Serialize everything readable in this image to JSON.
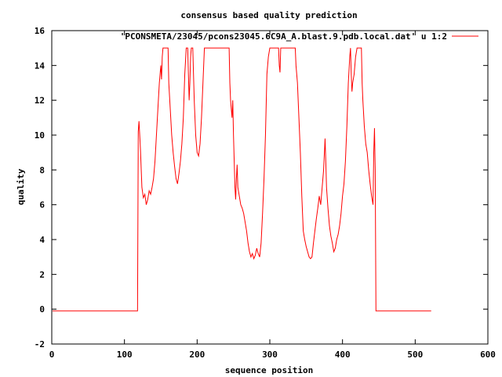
{
  "chart_data": {
    "type": "line",
    "title": "consensus based quality prediction",
    "xlabel": "sequence position",
    "ylabel": "quality",
    "xlim": [
      0,
      600
    ],
    "ylim": [
      -2,
      16
    ],
    "x_ticks": [
      0,
      100,
      200,
      300,
      400,
      500,
      600
    ],
    "y_ticks": [
      -2,
      0,
      2,
      4,
      6,
      8,
      10,
      12,
      14,
      16
    ],
    "grid": false,
    "legend_position": "top-right",
    "series": [
      {
        "name": "'PCONSMETA/23045/pcons23045.6C9A_A.blast.9.pdb.local.dat' u 1:2",
        "color": "#ff0000",
        "points": [
          [
            1,
            -0.1
          ],
          [
            118,
            -0.1
          ],
          [
            119,
            10.2
          ],
          [
            120,
            10.8
          ],
          [
            121,
            10.0
          ],
          [
            122,
            9.2
          ],
          [
            124,
            7.0
          ],
          [
            126,
            6.4
          ],
          [
            128,
            6.6
          ],
          [
            130,
            6.0
          ],
          [
            132,
            6.3
          ],
          [
            134,
            6.8
          ],
          [
            136,
            6.6
          ],
          [
            138,
            7.0
          ],
          [
            140,
            7.5
          ],
          [
            142,
            8.5
          ],
          [
            144,
            10.0
          ],
          [
            146,
            11.5
          ],
          [
            148,
            13.0
          ],
          [
            150,
            14.0
          ],
          [
            151,
            13.2
          ],
          [
            152,
            14.5
          ],
          [
            153,
            15.0
          ],
          [
            160,
            15.0
          ],
          [
            161,
            13.0
          ],
          [
            163,
            11.5
          ],
          [
            165,
            10.0
          ],
          [
            167,
            9.0
          ],
          [
            169,
            8.2
          ],
          [
            171,
            7.5
          ],
          [
            173,
            7.2
          ],
          [
            175,
            7.8
          ],
          [
            177,
            8.5
          ],
          [
            179,
            9.5
          ],
          [
            181,
            11.0
          ],
          [
            183,
            13.5
          ],
          [
            185,
            15.0
          ],
          [
            187,
            15.0
          ],
          [
            188,
            13.5
          ],
          [
            189,
            12.0
          ],
          [
            190,
            13.0
          ],
          [
            191,
            14.5
          ],
          [
            192,
            15.0
          ],
          [
            194,
            15.0
          ],
          [
            196,
            12.0
          ],
          [
            198,
            10.0
          ],
          [
            200,
            9.0
          ],
          [
            202,
            8.8
          ],
          [
            204,
            9.5
          ],
          [
            206,
            11.0
          ],
          [
            208,
            13.0
          ],
          [
            210,
            15.0
          ],
          [
            244,
            15.0
          ],
          [
            245,
            13.0
          ],
          [
            246,
            12.0
          ],
          [
            248,
            11.0
          ],
          [
            249,
            12.0
          ],
          [
            250,
            10.0
          ],
          [
            251,
            8.5
          ],
          [
            252,
            7.0
          ],
          [
            253,
            6.3
          ],
          [
            254,
            7.5
          ],
          [
            255,
            8.3
          ],
          [
            256,
            7.0
          ],
          [
            258,
            6.5
          ],
          [
            260,
            6.0
          ],
          [
            262,
            5.8
          ],
          [
            264,
            5.5
          ],
          [
            266,
            5.0
          ],
          [
            268,
            4.5
          ],
          [
            270,
            3.8
          ],
          [
            272,
            3.3
          ],
          [
            274,
            3.0
          ],
          [
            276,
            3.2
          ],
          [
            278,
            2.9
          ],
          [
            280,
            3.1
          ],
          [
            282,
            3.5
          ],
          [
            284,
            3.2
          ],
          [
            286,
            3.0
          ],
          [
            288,
            3.8
          ],
          [
            290,
            5.5
          ],
          [
            292,
            7.5
          ],
          [
            294,
            10.0
          ],
          [
            296,
            13.5
          ],
          [
            298,
            14.5
          ],
          [
            300,
            15.0
          ],
          [
            312,
            15.0
          ],
          [
            313,
            14.0
          ],
          [
            314,
            13.6
          ],
          [
            315,
            15.0
          ],
          [
            335,
            15.0
          ],
          [
            336,
            14.0
          ],
          [
            338,
            13.0
          ],
          [
            340,
            11.0
          ],
          [
            342,
            9.0
          ],
          [
            344,
            6.5
          ],
          [
            346,
            4.5
          ],
          [
            348,
            4.0
          ],
          [
            350,
            3.6
          ],
          [
            352,
            3.3
          ],
          [
            354,
            3.0
          ],
          [
            356,
            2.9
          ],
          [
            358,
            3.0
          ],
          [
            360,
            3.8
          ],
          [
            362,
            4.5
          ],
          [
            364,
            5.2
          ],
          [
            366,
            5.8
          ],
          [
            368,
            6.5
          ],
          [
            370,
            6.0
          ],
          [
            372,
            7.0
          ],
          [
            374,
            8.0
          ],
          [
            376,
            9.8
          ],
          [
            377,
            8.5
          ],
          [
            378,
            7.0
          ],
          [
            380,
            5.8
          ],
          [
            382,
            4.8
          ],
          [
            384,
            4.2
          ],
          [
            386,
            3.8
          ],
          [
            388,
            3.3
          ],
          [
            390,
            3.5
          ],
          [
            392,
            4.0
          ],
          [
            394,
            4.3
          ],
          [
            396,
            4.8
          ],
          [
            398,
            5.5
          ],
          [
            400,
            6.5
          ],
          [
            402,
            7.2
          ],
          [
            404,
            8.5
          ],
          [
            406,
            10.5
          ],
          [
            408,
            13.0
          ],
          [
            410,
            14.5
          ],
          [
            411,
            15.0
          ],
          [
            412,
            13.5
          ],
          [
            413,
            12.5
          ],
          [
            414,
            13.0
          ],
          [
            416,
            13.5
          ],
          [
            418,
            14.5
          ],
          [
            420,
            15.0
          ],
          [
            426,
            15.0
          ],
          [
            427,
            13.0
          ],
          [
            428,
            12.0
          ],
          [
            430,
            10.5
          ],
          [
            432,
            9.5
          ],
          [
            434,
            9.0
          ],
          [
            436,
            8.0
          ],
          [
            438,
            7.2
          ],
          [
            440,
            6.5
          ],
          [
            442,
            6.0
          ],
          [
            443,
            9.0
          ],
          [
            444,
            10.4
          ],
          [
            445,
            8.0
          ],
          [
            446,
            -0.1
          ],
          [
            522,
            -0.1
          ]
        ]
      }
    ]
  }
}
